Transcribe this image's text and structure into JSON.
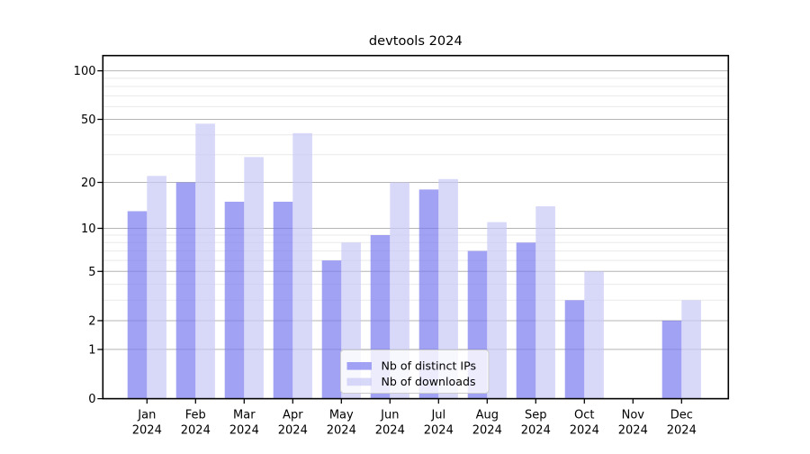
{
  "chart_data": {
    "type": "bar",
    "title": "devtools 2024",
    "categories": [
      "Jan 2024",
      "Feb 2024",
      "Mar 2024",
      "Apr 2024",
      "May 2024",
      "Jun 2024",
      "Jul 2024",
      "Aug 2024",
      "Sep 2024",
      "Oct 2024",
      "Nov 2024",
      "Dec 2024"
    ],
    "series": [
      {
        "name": "Nb of distinct IPs",
        "color": "rgba(122,122,240,0.70)",
        "color_hex_on_white": "#a2a2f4",
        "values": [
          13,
          20,
          15,
          15,
          6,
          9,
          18,
          7,
          8,
          3,
          0,
          2
        ]
      },
      {
        "name": "Nb of downloads",
        "color": "rgba(201,201,246,0.72)",
        "color_hex_on_white": "#d8d8f8",
        "values": [
          22,
          47,
          29,
          41,
          8,
          20,
          21,
          11,
          14,
          5,
          0,
          3
        ]
      }
    ],
    "xlabel": "",
    "ylabel": "",
    "yscale": "log1p",
    "ylim": [
      0,
      124
    ],
    "y_major_ticks": [
      100,
      50,
      20,
      10,
      5,
      2,
      1,
      0
    ],
    "y_minor_ticks": [
      3,
      4,
      6,
      7,
      8,
      9,
      30,
      40,
      60,
      70,
      80,
      90
    ],
    "grid": "major+minor horizontal",
    "legend_position": "lower center",
    "style": {
      "major_grid_color": "#b4b4b4",
      "minor_grid_color": "#e9e9e9",
      "spine_color": "#000000",
      "legend_bg": "rgba(255,255,255,0.8)",
      "legend_border": "#cccccc"
    }
  }
}
